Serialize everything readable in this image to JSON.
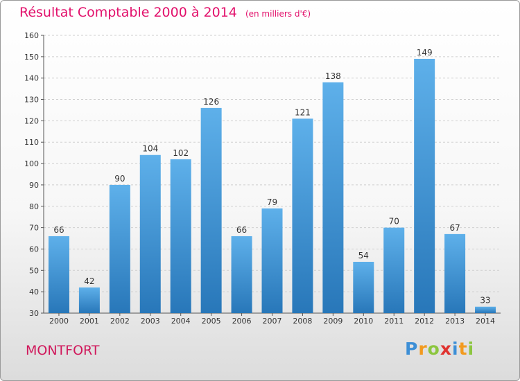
{
  "title": "Résultat Comptable 2000 à 2014",
  "subtitle": "(en milliers d'€)",
  "commune": "MONTFORT",
  "logo": {
    "letters": [
      {
        "char": "P",
        "color": "#3d8fd6"
      },
      {
        "char": "r",
        "color": "#f29a1f"
      },
      {
        "char": "o",
        "color": "#8cc63f"
      },
      {
        "char": "x",
        "color": "#e0322f"
      },
      {
        "char": "i",
        "color": "#3d8fd6"
      },
      {
        "char": "t",
        "color": "#f29a1f"
      },
      {
        "char": "i",
        "color": "#8cc63f"
      }
    ]
  },
  "colors": {
    "title": "#e2106b",
    "bar_top": "#5eb0ea",
    "bar_bottom": "#2877b9",
    "grid": "#cfcfcf"
  },
  "chart_data": {
    "type": "bar",
    "title": "Résultat Comptable 2000 à 2014",
    "subtitle": "(en milliers d'€)",
    "categories": [
      "2000",
      "2001",
      "2002",
      "2003",
      "2004",
      "2005",
      "2006",
      "2007",
      "2008",
      "2009",
      "2010",
      "2011",
      "2012",
      "2013",
      "2014"
    ],
    "values": [
      66,
      42,
      90,
      104,
      102,
      126,
      66,
      79,
      121,
      138,
      54,
      70,
      149,
      67,
      33
    ],
    "ylim": [
      30,
      160
    ],
    "yticks": [
      30,
      40,
      50,
      60,
      70,
      80,
      90,
      100,
      110,
      120,
      130,
      140,
      150,
      160
    ],
    "grid": true,
    "xlabel": "",
    "ylabel": ""
  }
}
